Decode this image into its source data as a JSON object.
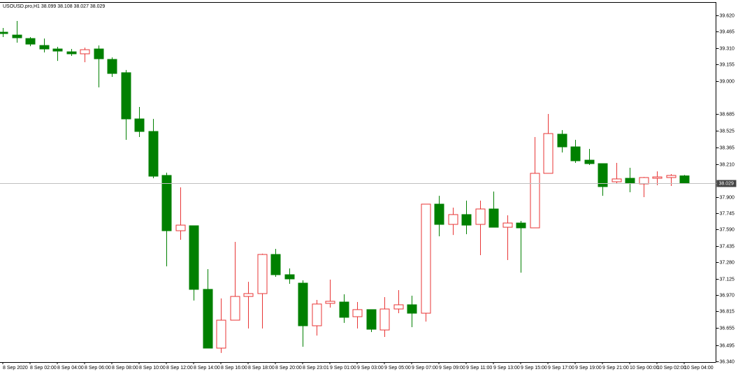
{
  "chart_data": {
    "type": "candlestick",
    "title": "USOUSD.pro,H1  38.099 38.108 38.027 38.029",
    "categories": [
      "8 Sep 2020",
      null,
      "8 Sep 02:00",
      null,
      "8 Sep 04:00",
      null,
      "8 Sep 06:00",
      null,
      "8 Sep 08:00",
      null,
      "8 Sep 10:00",
      null,
      "8 Sep 12:00",
      null,
      "8 Sep 14:00",
      null,
      "8 Sep 16:00",
      null,
      "8 Sep 18:00",
      null,
      "8 Sep 20:00",
      null,
      "8 Sep 23:01",
      null,
      "9 Sep 01:00",
      null,
      "9 Sep 03:00",
      null,
      "9 Sep 05:00",
      null,
      "9 Sep 07:00",
      null,
      "9 Sep 09:00",
      null,
      "9 Sep 11:00",
      null,
      "9 Sep 13:00",
      null,
      "9 Sep 15:00",
      null,
      "9 Sep 17:00",
      null,
      "9 Sep 19:00",
      null,
      "9 Sep 21:00",
      null,
      "10 Sep 00:00",
      null,
      "10 Sep 02:00",
      null,
      "10 Sep 04:00"
    ],
    "open": [
      39.461,
      39.434,
      39.401,
      39.335,
      39.302,
      39.275,
      39.256,
      39.302,
      39.203,
      39.077,
      38.639,
      38.52,
      38.103,
      37.579,
      37.626,
      37.023,
      36.466,
      36.731,
      36.956,
      36.983,
      37.354,
      37.162,
      37.082,
      36.678,
      36.89,
      36.903,
      36.764,
      36.831,
      36.638,
      36.837,
      36.877,
      36.797,
      37.831,
      37.639,
      37.732,
      37.639,
      37.785,
      37.612,
      37.652,
      37.606,
      38.123,
      38.494,
      38.374,
      38.248,
      38.215,
      38.043,
      38.076,
      38.023,
      38.076,
      38.083,
      38.099
    ],
    "high": [
      39.501,
      39.567,
      39.415,
      39.401,
      39.322,
      39.302,
      39.315,
      39.335,
      39.222,
      39.103,
      38.752,
      38.639,
      38.129,
      37.99,
      37.626,
      37.215,
      36.937,
      37.473,
      37.095,
      37.361,
      37.407,
      37.221,
      37.109,
      36.923,
      37.115,
      36.976,
      36.903,
      36.831,
      36.95,
      37.016,
      36.963,
      37.831,
      37.91,
      37.798,
      37.864,
      37.864,
      37.95,
      37.725,
      37.672,
      38.467,
      38.686,
      38.533,
      38.441,
      38.355,
      38.215,
      38.222,
      38.176,
      38.089,
      38.142,
      38.116,
      38.108
    ],
    "low": [
      39.415,
      39.362,
      39.328,
      39.269,
      39.189,
      39.236,
      39.176,
      38.938,
      39.037,
      38.441,
      38.467,
      38.076,
      37.241,
      37.493,
      36.917,
      36.466,
      36.42,
      36.731,
      36.652,
      36.652,
      37.142,
      37.076,
      36.479,
      36.585,
      36.85,
      36.705,
      36.652,
      36.618,
      36.572,
      36.797,
      36.665,
      36.718,
      37.526,
      37.539,
      37.546,
      37.347,
      37.612,
      37.301,
      37.182,
      37.606,
      38.123,
      38.321,
      38.222,
      38.202,
      37.91,
      38.023,
      37.944,
      37.897,
      38.01,
      38.003,
      38.027
    ],
    "close": [
      39.448,
      39.408,
      39.348,
      39.302,
      39.282,
      39.256,
      39.295,
      39.209,
      39.07,
      38.639,
      38.52,
      38.096,
      37.579,
      37.632,
      37.023,
      36.466,
      36.731,
      36.956,
      36.983,
      37.354,
      37.162,
      37.122,
      36.678,
      36.884,
      36.91,
      36.758,
      36.831,
      36.645,
      36.837,
      36.877,
      36.797,
      37.831,
      37.639,
      37.732,
      37.632,
      37.785,
      37.612,
      37.652,
      37.606,
      38.123,
      38.5,
      38.374,
      38.242,
      38.215,
      37.997,
      38.07,
      38.03,
      38.083,
      38.089,
      38.103,
      38.029
    ],
    "up_color": "#e83535",
    "down_color": "#008000",
    "ylim": [
      36.34,
      39.733
    ],
    "yticks": [
      {
        "value": 39.62,
        "label": "39.620"
      },
      39.465,
      {
        "value": 39.31,
        "label": "39.310"
      },
      39.155,
      {
        "value": 39.0,
        "label": "39.000"
      },
      38.685,
      38.525,
      38.365,
      {
        "value": 38.21,
        "label": "38.210"
      },
      {
        "value": 37.9,
        "label": "37.900"
      },
      37.745,
      {
        "value": 37.59,
        "label": "37.590"
      },
      37.435,
      {
        "value": 37.28,
        "label": "37.280"
      },
      37.125,
      {
        "value": 36.97,
        "label": "36.970"
      },
      36.815,
      36.655,
      36.495,
      {
        "value": 36.34,
        "label": "36.340"
      }
    ],
    "current_price": 38.029,
    "grid": false
  }
}
